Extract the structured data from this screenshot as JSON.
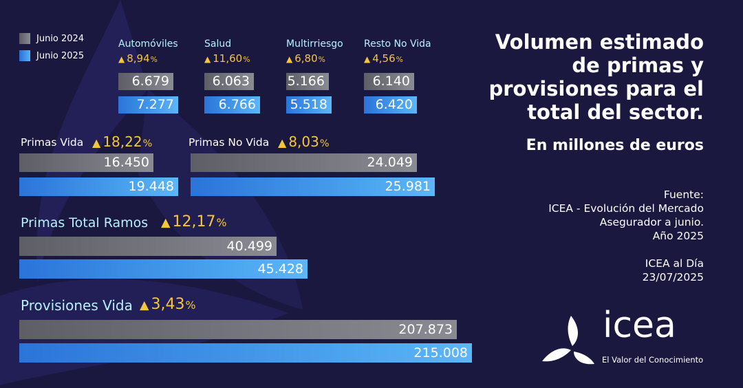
{
  "title_lines": [
    "Volumen estimado",
    "de primas y",
    "provisiones para el",
    "total del sector."
  ],
  "subtitle": "En millones de euros",
  "legend": [
    {
      "label": "Junio 2024",
      "color": "#7a7a83"
    },
    {
      "label": "Junio 2025",
      "color": "#3f93e8"
    }
  ],
  "colors": {
    "background": "#1b1840",
    "year_2024": "#7a7a83",
    "year_2025": "#3f93e8",
    "growth": "#f5c53b",
    "label_cyan": "#b8f0ff"
  },
  "source_lines": [
    "Fuente:",
    "ICEA - Evolución del Mercado",
    "Asegurador a junio.",
    "Año 2025",
    "",
    "ICEA al Día",
    "23/07/2025"
  ],
  "logo": {
    "word": "icea",
    "tagline": "El Valor del Conocimiento"
  },
  "chart_data": {
    "type": "bar",
    "orientation": "horizontal",
    "unit": "millones de euros",
    "series_names": [
      "Junio 2024",
      "Junio 2025"
    ],
    "groups": [
      {
        "name": "Automóviles",
        "growth": "8,94",
        "values": [
          6679,
          7277
        ],
        "labels": [
          "6.679",
          "7.277"
        ]
      },
      {
        "name": "Salud",
        "growth": "11,60",
        "values": [
          6063,
          6766
        ],
        "labels": [
          "6.063",
          "6.766"
        ]
      },
      {
        "name": "Multirriesgo",
        "growth": "6,80",
        "values": [
          5166,
          5518
        ],
        "labels": [
          "5.166",
          "5.518"
        ]
      },
      {
        "name": "Resto No Vida",
        "growth": "4,56",
        "values": [
          6140,
          6420
        ],
        "labels": [
          "6.140",
          "6.420"
        ]
      },
      {
        "name": "Primas Vida",
        "growth": "18,22",
        "values": [
          16450,
          19448
        ],
        "labels": [
          "16.450",
          "19.448"
        ]
      },
      {
        "name": "Primas No Vida",
        "growth": "8,03",
        "values": [
          24049,
          25981
        ],
        "labels": [
          "24.049",
          "25.981"
        ]
      },
      {
        "name": "Primas Total Ramos",
        "growth": "12,17",
        "values": [
          40499,
          45428
        ],
        "labels": [
          "40.499",
          "45.428"
        ]
      },
      {
        "name": "Provisiones Vida",
        "growth": "3,43",
        "values": [
          207873,
          215008
        ],
        "labels": [
          "207.873",
          "215.008"
        ]
      }
    ]
  }
}
